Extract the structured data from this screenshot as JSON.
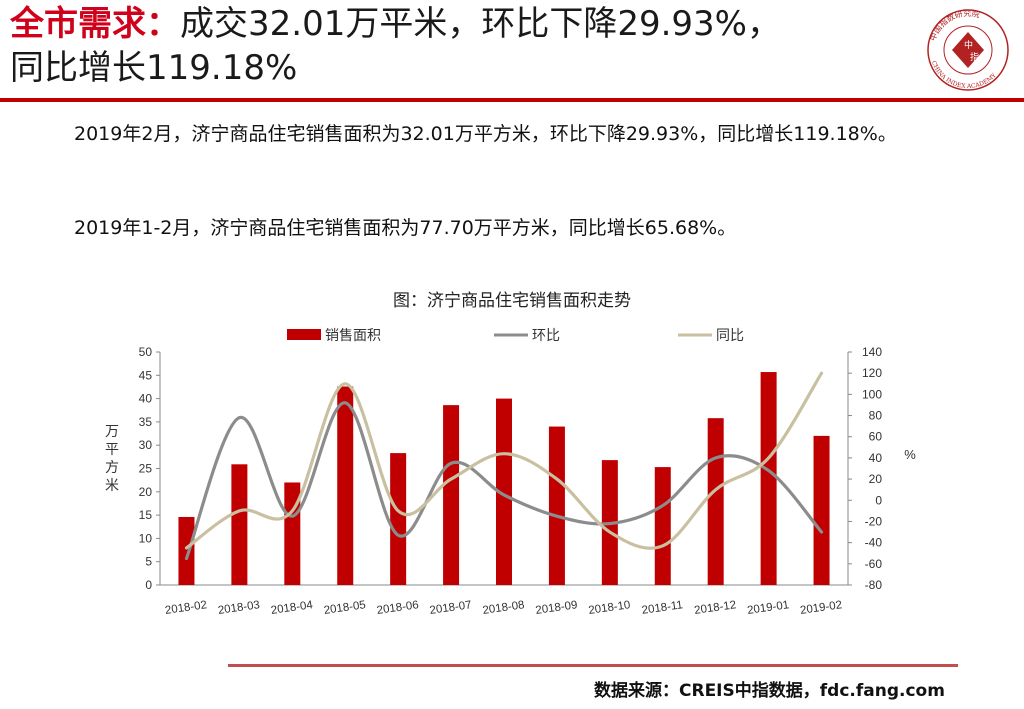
{
  "header": {
    "title_accent": "全市需求：",
    "title_line1": "成交32.01万平米，环比下降29.93%，",
    "title_line2": "同比增长119.18%"
  },
  "logo": {
    "center_text": "中",
    "center_text2": "指",
    "ring_text_cn": "中国指数研究院",
    "ring_text_en": "CHINA INDEX ACADEMY",
    "color": "#b22222"
  },
  "paragraphs": [
    "2019年2月，济宁商品住宅销售面积为32.01万平方米，环比下降29.93%，同比增长119.18%。",
    "2019年1-2月，济宁商品住宅销售面积为77.70万平方米，同比增长65.68%。"
  ],
  "chart_data": {
    "type": "bar",
    "title": "图：济宁商品住宅销售面积走势",
    "ylabel": "万平方米",
    "y2label": "%",
    "ylim": [
      0,
      50
    ],
    "y2lim": [
      -80,
      140
    ],
    "yticks": [
      "0",
      "5",
      "10",
      "15",
      "20",
      "25",
      "30",
      "35",
      "40",
      "45",
      "50"
    ],
    "y2ticks": [
      "-80",
      "-60",
      "-40",
      "-20",
      "0",
      "20",
      "40",
      "60",
      "80",
      "100",
      "120",
      "140"
    ],
    "grid": false,
    "legend_position": "top",
    "categories": [
      "2018-02",
      "2018-03",
      "2018-04",
      "2018-05",
      "2018-06",
      "2018-07",
      "2018-08",
      "2018-09",
      "2018-10",
      "2018-11",
      "2018-12",
      "2019-01",
      "2019-02"
    ],
    "series": [
      {
        "name": "销售面积",
        "kind": "bar",
        "axis": "left",
        "color": "#c00000",
        "values": [
          14.6,
          25.9,
          22.0,
          42.6,
          28.3,
          38.6,
          40.0,
          34.0,
          26.8,
          25.3,
          35.8,
          45.7,
          32.0
        ]
      },
      {
        "name": "环比",
        "kind": "line",
        "axis": "right",
        "color": "#8c8c8c",
        "values": [
          -55,
          78,
          -15,
          92,
          -33,
          35,
          5,
          -15,
          -22,
          -5,
          40,
          28,
          -30
        ]
      },
      {
        "name": "同比",
        "kind": "line",
        "axis": "right",
        "color": "#c8c0a0",
        "values": [
          -45,
          -10,
          -10,
          110,
          -10,
          20,
          44,
          20,
          -30,
          -43,
          10,
          40,
          120
        ]
      }
    ]
  },
  "source": "数据来源：CREIS中指数据，fdc.fang.com"
}
